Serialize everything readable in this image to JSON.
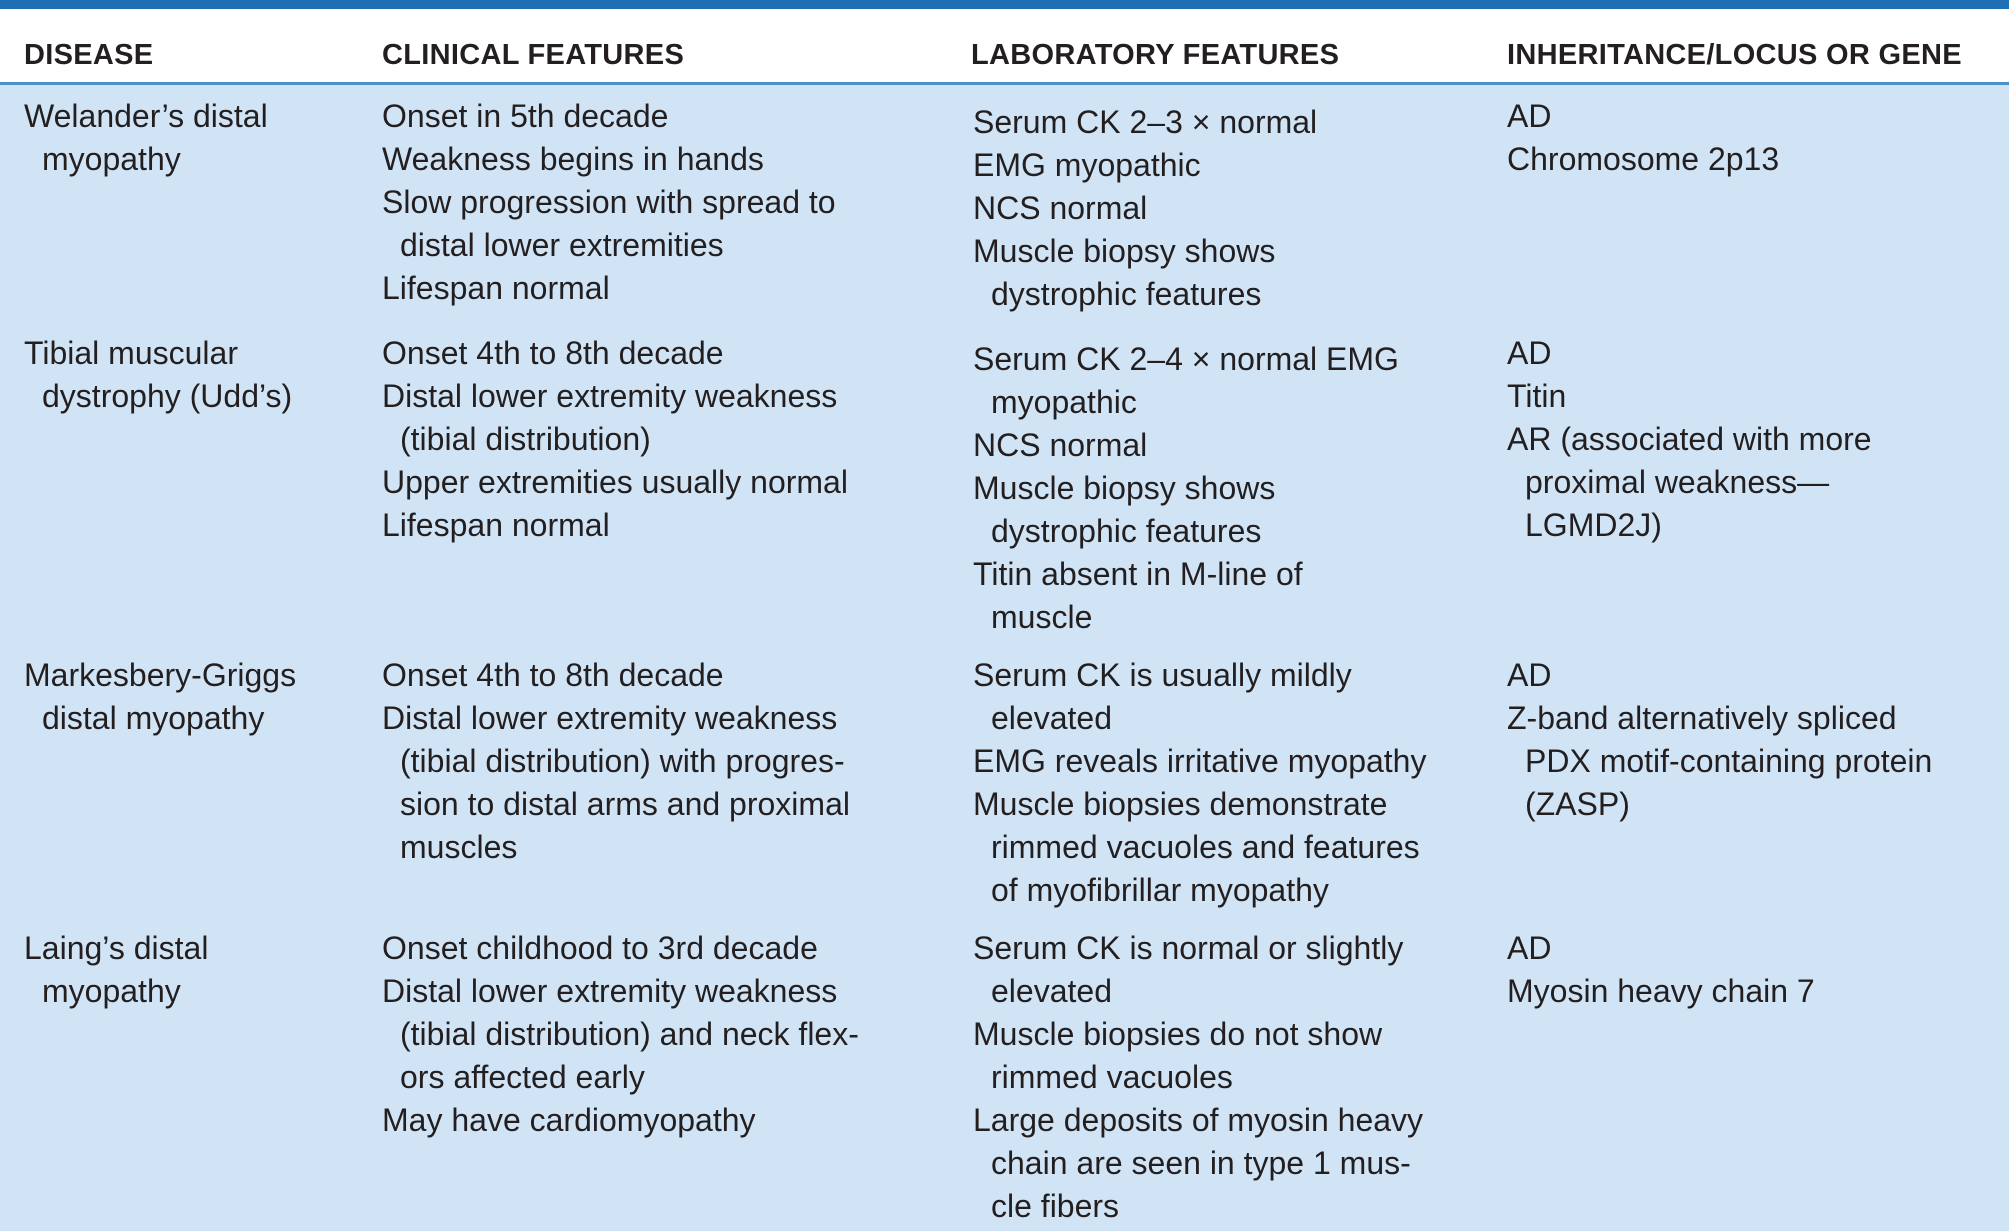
{
  "header": {
    "disease": "DISEASE",
    "clinical": "CLINICAL FEATURES",
    "laboratory": "LABORATORY FEATURES",
    "inheritance": "INHERITANCE/LOCUS OR GENE"
  },
  "rows": [
    {
      "disease": [
        "Welander’s distal",
        "myopathy"
      ],
      "clinical": [
        "Onset in 5th decade",
        "Weakness begins in hands",
        "Slow progression with spread to",
        "distal lower extremities",
        "Lifespan normal"
      ],
      "laboratory": [
        "Serum CK 2–3 × normal",
        "EMG myopathic",
        "NCS normal",
        "Muscle biopsy shows",
        "dystrophic features"
      ],
      "inheritance": [
        "AD",
        "Chromosome 2p13"
      ]
    },
    {
      "disease": [
        "Tibial muscular",
        "dystrophy (Udd’s)"
      ],
      "clinical": [
        "Onset 4th to 8th decade",
        "Distal lower extremity weakness",
        "(tibial distribution)",
        "Upper extremities usually normal",
        "Lifespan normal"
      ],
      "laboratory": [
        "Serum CK 2–4 × normal EMG",
        "myopathic",
        "NCS normal",
        "Muscle biopsy shows",
        "dystrophic features",
        "Titin absent in M-line of",
        "muscle"
      ],
      "inheritance": [
        "AD",
        "Titin",
        "AR (associated with more",
        "proximal weakness—",
        "LGMD2J)"
      ]
    },
    {
      "disease": [
        "Markesbery-Griggs",
        "distal myopathy"
      ],
      "clinical": [
        "Onset 4th to 8th decade",
        "Distal lower extremity weakness",
        "(tibial distribution) with progres-",
        "sion to distal arms and proximal",
        "muscles"
      ],
      "laboratory": [
        "Serum CK is usually mildly",
        "elevated",
        "EMG reveals irritative myopathy",
        "Muscle biopsies demonstrate",
        "rimmed vacuoles and features",
        "of myofibrillar myopathy"
      ],
      "inheritance": [
        "AD",
        "Z-band alternatively spliced",
        "PDX motif-containing protein",
        "(ZASP)"
      ]
    },
    {
      "disease": [
        "Laing’s distal",
        "myopathy"
      ],
      "clinical": [
        "Onset childhood to 3rd decade",
        "Distal lower extremity weakness",
        "(tibial distribution) and neck flex-",
        "ors affected early",
        "May have cardiomyopathy"
      ],
      "laboratory": [
        "Serum CK is normal or slightly",
        "elevated",
        "Muscle biopsies do not show",
        "rimmed vacuoles",
        "Large deposits of myosin heavy",
        "chain are seen in type 1 mus-",
        "cle fibers"
      ],
      "inheritance": [
        "AD",
        "Myosin heavy chain 7"
      ]
    }
  ]
}
